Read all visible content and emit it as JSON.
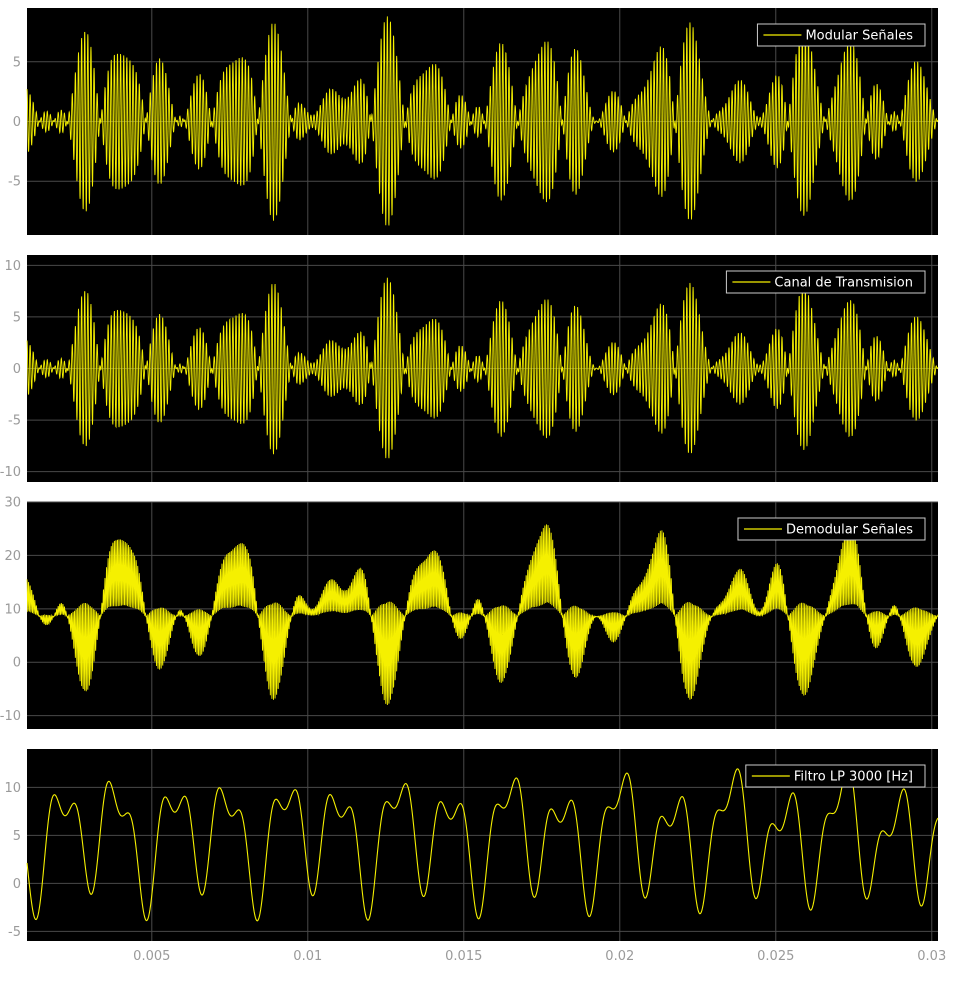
{
  "colors": {
    "figure_background": "#ffffff",
    "axes_background": "#000000",
    "grid": "#4a4a4a",
    "signal": "#f5f000",
    "tick_label": "#9a9a9a",
    "legend_text": "#ffffff",
    "legend_border": "#cccccc"
  },
  "chart_data": [
    {
      "type": "line",
      "legend": "Modular Señales",
      "legend_position": "top-right",
      "grid": true,
      "xlim": [
        0.001,
        0.0302
      ],
      "ylim": [
        -9.5,
        9.5
      ],
      "yticks": [
        -5,
        0,
        5
      ],
      "yticklabels": [
        "-5",
        "0",
        "5"
      ],
      "xticklabels_shown": false,
      "signal": {
        "kind": "modulated",
        "amplitude_peak": 8.8,
        "min": -8.7,
        "max": 8.8
      }
    },
    {
      "type": "line",
      "legend": "Canal de Transmision",
      "legend_position": "top-right",
      "grid": true,
      "xlim": [
        0.001,
        0.0302
      ],
      "ylim": [
        -11,
        11
      ],
      "yticks": [
        -10,
        -5,
        0,
        5,
        10
      ],
      "yticklabels": [
        "-10",
        "-5",
        "0",
        "5",
        "10"
      ],
      "xticklabels_shown": false,
      "signal": {
        "kind": "modulated",
        "amplitude_peak": 8.8,
        "min": -8.7,
        "max": 8.8
      }
    },
    {
      "type": "line",
      "legend": "Demodular Señales",
      "legend_position": "top-right",
      "grid": true,
      "xlim": [
        0.001,
        0.0302
      ],
      "ylim": [
        -12.5,
        30
      ],
      "yticks": [
        -10,
        0,
        10,
        20,
        30
      ],
      "yticklabels": [
        "-10",
        "0",
        "10",
        "20",
        "30"
      ],
      "xticklabels_shown": false,
      "signal": {
        "kind": "demodulated",
        "max": 25.8,
        "min": -8
      }
    },
    {
      "type": "line",
      "legend": "Filtro LP 3000 [Hz]",
      "legend_position": "top-right",
      "grid": true,
      "xlim": [
        0.001,
        0.0302
      ],
      "ylim": [
        -6,
        14
      ],
      "yticks": [
        -5,
        0,
        5,
        10
      ],
      "yticklabels": [
        "-5",
        "0",
        "5",
        "10"
      ],
      "xticks": [
        0.005,
        0.01,
        0.015,
        0.02,
        0.025,
        0.03
      ],
      "xticklabels": [
        "0.005",
        "0.01",
        "0.015",
        "0.02",
        "0.025",
        "0.03"
      ],
      "xticklabels_shown": true,
      "signal": {
        "kind": "filtered",
        "max": 12.3,
        "min": -3.9
      }
    }
  ]
}
